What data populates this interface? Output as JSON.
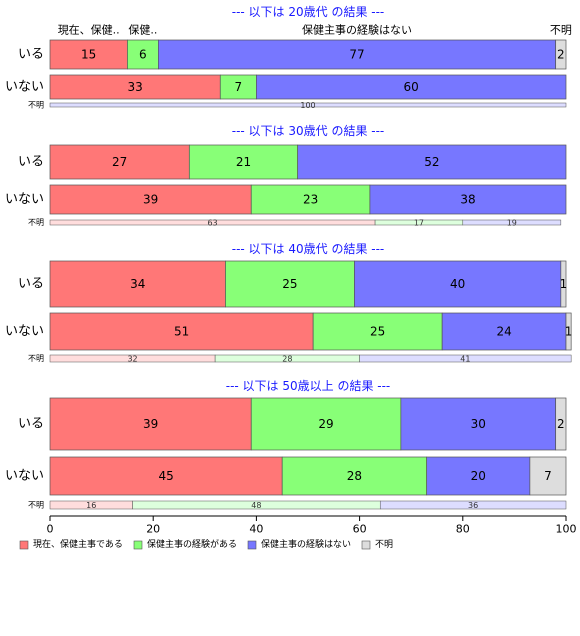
{
  "chart_data": {
    "type": "bar",
    "orientation": "horizontal",
    "stacked": true,
    "percent": true,
    "xlim": [
      0,
      100
    ],
    "xticks": [
      0,
      20,
      40,
      60,
      80,
      100
    ],
    "grid": false,
    "legend_position": "bottom-left",
    "series": [
      {
        "name": "現在、保健主事である",
        "color": "#ff7777"
      },
      {
        "name": "保健主事の経験がある",
        "color": "#88ff77"
      },
      {
        "name": "保健主事の経験はない",
        "color": "#7777ff"
      },
      {
        "name": "不明",
        "color": "#dddddd"
      }
    ],
    "top_segment_labels": [
      "現在、保健..",
      "保健..",
      "保健主事の経験はない",
      "不明"
    ],
    "panels": [
      {
        "title": "--- 以下は 20歳代 の結果 ---",
        "rows": [
          {
            "label": "いる",
            "values": [
              15,
              6,
              77,
              2
            ],
            "labels": [
              "15",
              "6",
              "77",
              "2"
            ]
          },
          {
            "label": "いない",
            "values": [
              33,
              7,
              60,
              0
            ],
            "labels": [
              "33",
              "7",
              "60",
              ""
            ]
          },
          {
            "label": "不明",
            "values": [
              0,
              0,
              100,
              0
            ],
            "labels": [
              "",
              "",
              "100",
              ""
            ]
          }
        ]
      },
      {
        "title": "--- 以下は 30歳代 の結果 ---",
        "rows": [
          {
            "label": "いる",
            "values": [
              27,
              21,
              52,
              0
            ],
            "labels": [
              "27",
              "21",
              "52",
              ""
            ]
          },
          {
            "label": "いない",
            "values": [
              39,
              23,
              38,
              0
            ],
            "labels": [
              "39",
              "23",
              "38",
              ""
            ]
          },
          {
            "label": "不明",
            "values": [
              63,
              17,
              19,
              0
            ],
            "labels": [
              "63",
              "17",
              "19",
              ""
            ]
          }
        ]
      },
      {
        "title": "--- 以下は 40歳代 の結果 ---",
        "rows": [
          {
            "label": "いる",
            "values": [
              34,
              25,
              40,
              1
            ],
            "labels": [
              "34",
              "25",
              "40",
              "1"
            ]
          },
          {
            "label": "いない",
            "values": [
              51,
              25,
              24,
              1
            ],
            "labels": [
              "51",
              "25",
              "24",
              "1"
            ]
          },
          {
            "label": "不明",
            "values": [
              32,
              28,
              41,
              0
            ],
            "labels": [
              "32",
              "28",
              "41",
              ""
            ]
          }
        ]
      },
      {
        "title": "--- 以下は 50歳以上 の結果 ---",
        "rows": [
          {
            "label": "いる",
            "values": [
              39,
              29,
              30,
              2
            ],
            "labels": [
              "39",
              "29",
              "30",
              "2"
            ]
          },
          {
            "label": "いない",
            "values": [
              45,
              28,
              20,
              7
            ],
            "labels": [
              "45",
              "28",
              "20",
              "7"
            ]
          },
          {
            "label": "不明",
            "values": [
              16,
              48,
              36,
              0
            ],
            "labels": [
              "16",
              "48",
              "36",
              ""
            ]
          }
        ]
      }
    ]
  }
}
